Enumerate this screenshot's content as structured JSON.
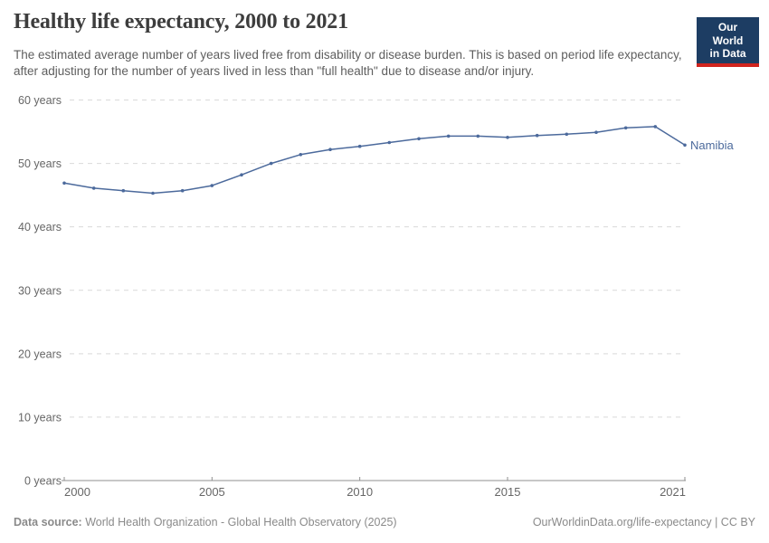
{
  "header": {
    "title": "Healthy life expectancy, 2000 to 2021",
    "subtitle": "The estimated average number of years lived free from disability or disease burden. This is based on period life expectancy, after adjusting for the number of years lived in less than \"full health\" due to disease and/or injury."
  },
  "logo": {
    "line1": "Our World",
    "line2": "in Data",
    "bg_color": "#1d3d63",
    "accent_color": "#d0241e"
  },
  "chart_data": {
    "type": "line",
    "title": "Healthy life expectancy, 2000 to 2021",
    "xlabel": "",
    "ylabel": "",
    "x": [
      2000,
      2001,
      2002,
      2003,
      2004,
      2005,
      2006,
      2007,
      2008,
      2009,
      2010,
      2011,
      2012,
      2013,
      2014,
      2015,
      2016,
      2017,
      2018,
      2019,
      2020,
      2021
    ],
    "series": [
      {
        "name": "Namibia",
        "color": "#4C6A9C",
        "values": [
          46.9,
          46.1,
          45.7,
          45.3,
          45.7,
          46.5,
          48.2,
          50.0,
          51.4,
          52.2,
          52.7,
          53.3,
          53.9,
          54.3,
          54.3,
          54.1,
          54.4,
          54.6,
          54.9,
          55.6,
          55.8,
          52.9
        ]
      }
    ],
    "ylim": [
      0,
      60
    ],
    "yticks": [
      0,
      10,
      20,
      30,
      40,
      50,
      60
    ],
    "ytick_label_suffix": " years",
    "xticks": [
      2000,
      2005,
      2010,
      2015,
      2021
    ],
    "grid": "horizontal-dashed",
    "legend_position": "label-at-line-end",
    "markers": "dots"
  },
  "colors": {
    "line": "#4C6A9C",
    "title_text": "#3d3d3d",
    "subtitle_text": "#5e5e5e",
    "tick_text": "#666666",
    "gridline": "#d9d9d9",
    "axis": "#8f8f8f",
    "footer_text": "#8a8a8a"
  },
  "footer": {
    "source_label": "Data source:",
    "source_text": " World Health Organization - Global Health Observatory (2025)",
    "right_text": "OurWorldinData.org/life-expectancy | CC BY"
  }
}
